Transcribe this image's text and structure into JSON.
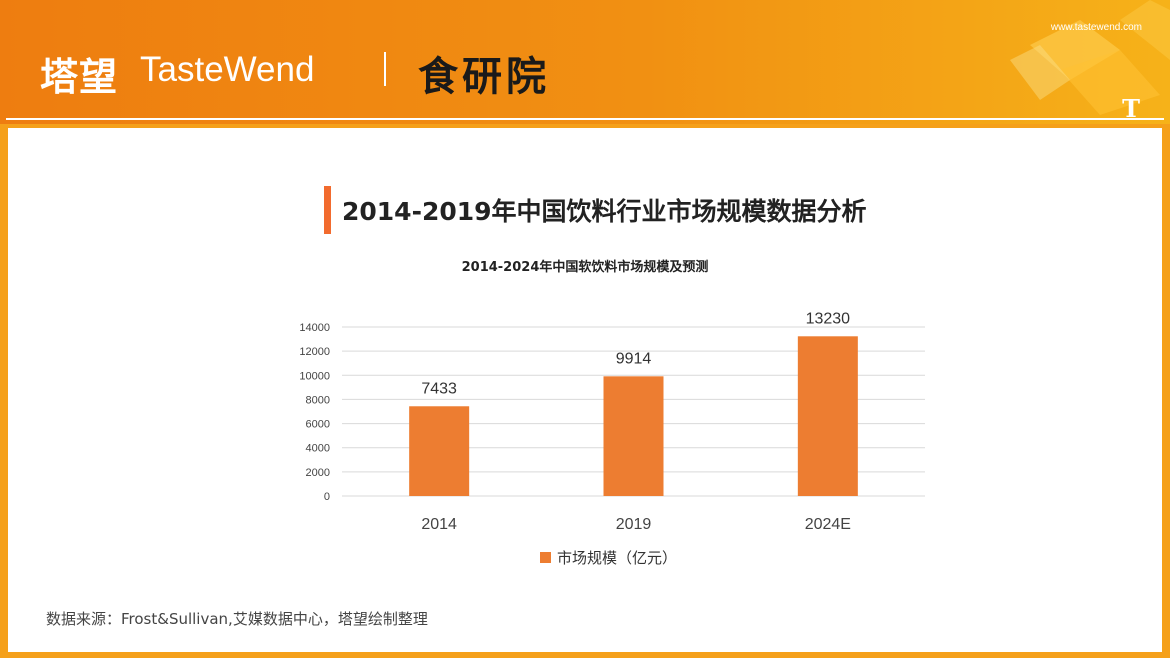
{
  "header": {
    "brand_cn": "塔望",
    "brand_en": "TasteWend",
    "brand_sub": "食研院",
    "website": "www.tastewend.com",
    "deco_letter": "T"
  },
  "section": {
    "title": "2014-2019年中国饮料行业市场规模数据分析"
  },
  "chart_data": {
    "type": "bar",
    "title": "2014-2024年中国软饮料市场规模及预测",
    "categories": [
      "2014",
      "2019",
      "2024E"
    ],
    "series": [
      {
        "name": "市场规模（亿元）",
        "values": [
          7433,
          9914,
          13230
        ],
        "color": "#ed7d31"
      }
    ],
    "ylim": [
      0,
      14000
    ],
    "yticks": [
      "0",
      "2000",
      "4000",
      "6000",
      "8000",
      "10000",
      "12000",
      "14000"
    ],
    "grid": true,
    "legend": "bottom"
  },
  "footer": {
    "source": "数据来源：Frost&Sullivan,艾媒数据中心，塔望绘制整理"
  },
  "colors": {
    "header_start": "#ee7d10",
    "header_end": "#f6b219",
    "accent_mark": "#f26b2e",
    "bar": "#ed7d31"
  }
}
